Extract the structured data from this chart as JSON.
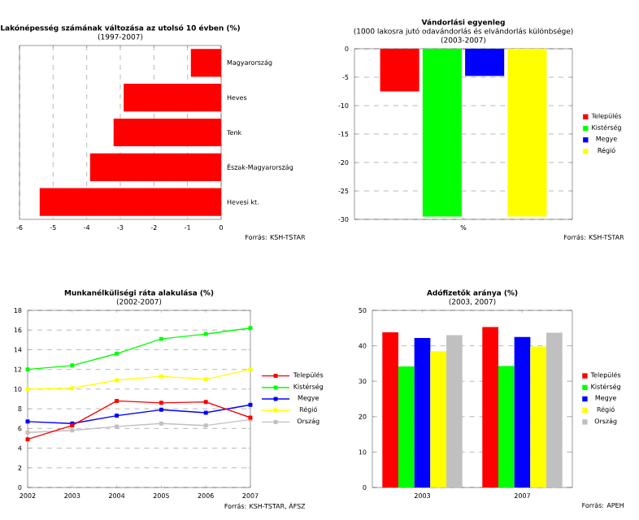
{
  "chart_data": [
    {
      "type": "bar",
      "orientation": "horizontal",
      "title": "Lakónépesség számának változása az utolsó 10 évben (%)",
      "subtitle": "(1997-2007)",
      "categories": [
        "Magyarország",
        "Heves",
        "Tenk",
        "Észak-Magyarország",
        "Hevesi kt."
      ],
      "values": [
        -0.9,
        -2.9,
        -3.2,
        -3.9,
        -5.4
      ],
      "color": "#ff0000",
      "xlim": [
        -6,
        0
      ],
      "xticks": [
        -6,
        -5,
        -4,
        -3,
        -2,
        -1,
        0
      ],
      "grid": "x",
      "annotations": [
        "Forrás: KSH-TSTAR"
      ]
    },
    {
      "type": "bar",
      "title": "Vándorlási egyenleg",
      "subtitle": "(1000 lakosra jutó odavándorlás és elvándorlás különbsége)",
      "categories": [
        "%"
      ],
      "series": [
        {
          "name": "Település",
          "color": "#ff0000",
          "values": [
            -7.5
          ]
        },
        {
          "name": "Kistérség",
          "color": "#00ff00",
          "values": [
            -29.5
          ]
        },
        {
          "name": "Megye",
          "color": "#0000ff",
          "values": [
            -4.8
          ]
        },
        {
          "name": "Régió",
          "color": "#ffff00",
          "values": [
            -29.5
          ]
        }
      ],
      "ylim": [
        -30,
        0
      ],
      "yticks": [
        0,
        -5,
        -10,
        -15,
        -20,
        -25,
        -30
      ],
      "grid": "y",
      "legend": "right",
      "annotations": [
        "(2003-2007)",
        "Forrás: KSH-TSTAR"
      ]
    },
    {
      "type": "line",
      "title": "Munkanélküliségi ráta alakulása (%)",
      "subtitle": "(2002-2007)",
      "x": [
        2002,
        2003,
        2004,
        2005,
        2006,
        2007
      ],
      "series": [
        {
          "name": "Település",
          "color": "#ff0000",
          "values": [
            4.9,
            6.3,
            8.8,
            8.6,
            8.7,
            7.1
          ]
        },
        {
          "name": "Kistérség",
          "color": "#00ff00",
          "values": [
            12.0,
            12.4,
            13.6,
            15.1,
            15.6,
            16.2
          ]
        },
        {
          "name": "Megye",
          "color": "#0000ff",
          "values": [
            6.7,
            6.5,
            7.3,
            7.9,
            7.6,
            8.4
          ]
        },
        {
          "name": "Régió",
          "color": "#ffff00",
          "values": [
            10.0,
            10.1,
            10.9,
            11.3,
            11.0,
            12.0
          ]
        },
        {
          "name": "Ország",
          "color": "#c0c0c0",
          "values": [
            5.6,
            5.8,
            6.2,
            6.5,
            6.3,
            6.9
          ]
        }
      ],
      "xlim": [
        2002,
        2007
      ],
      "xticks": [
        2002,
        2003,
        2004,
        2005,
        2006,
        2007
      ],
      "ylim": [
        0,
        18
      ],
      "yticks": [
        0,
        2,
        4,
        6,
        8,
        10,
        12,
        14,
        16,
        18
      ],
      "grid": "y",
      "legend": "right",
      "marker": "square",
      "annotations": [
        "Forrás: KSH-TSTAR, ÁFSZ"
      ]
    },
    {
      "type": "bar",
      "title": "Adófizetők aránya (%)",
      "subtitle": "(2003, 2007)",
      "categories": [
        "2003",
        "2007"
      ],
      "series": [
        {
          "name": "Település",
          "color": "#ff0000",
          "values": [
            43.8,
            45.3
          ]
        },
        {
          "name": "Kistérség",
          "color": "#00ff00",
          "values": [
            34.2,
            34.3
          ]
        },
        {
          "name": "Megye",
          "color": "#0000ff",
          "values": [
            42.2,
            42.5
          ]
        },
        {
          "name": "Régió",
          "color": "#ffff00",
          "values": [
            38.5,
            39.8
          ]
        },
        {
          "name": "Ország",
          "color": "#c0c0c0",
          "values": [
            43.0,
            43.7
          ]
        }
      ],
      "ylim": [
        0,
        50
      ],
      "yticks": [
        0,
        10,
        20,
        30,
        40,
        50
      ],
      "grid": "y",
      "legend": "right",
      "annotations": [
        "Forrás: APEH"
      ]
    }
  ]
}
